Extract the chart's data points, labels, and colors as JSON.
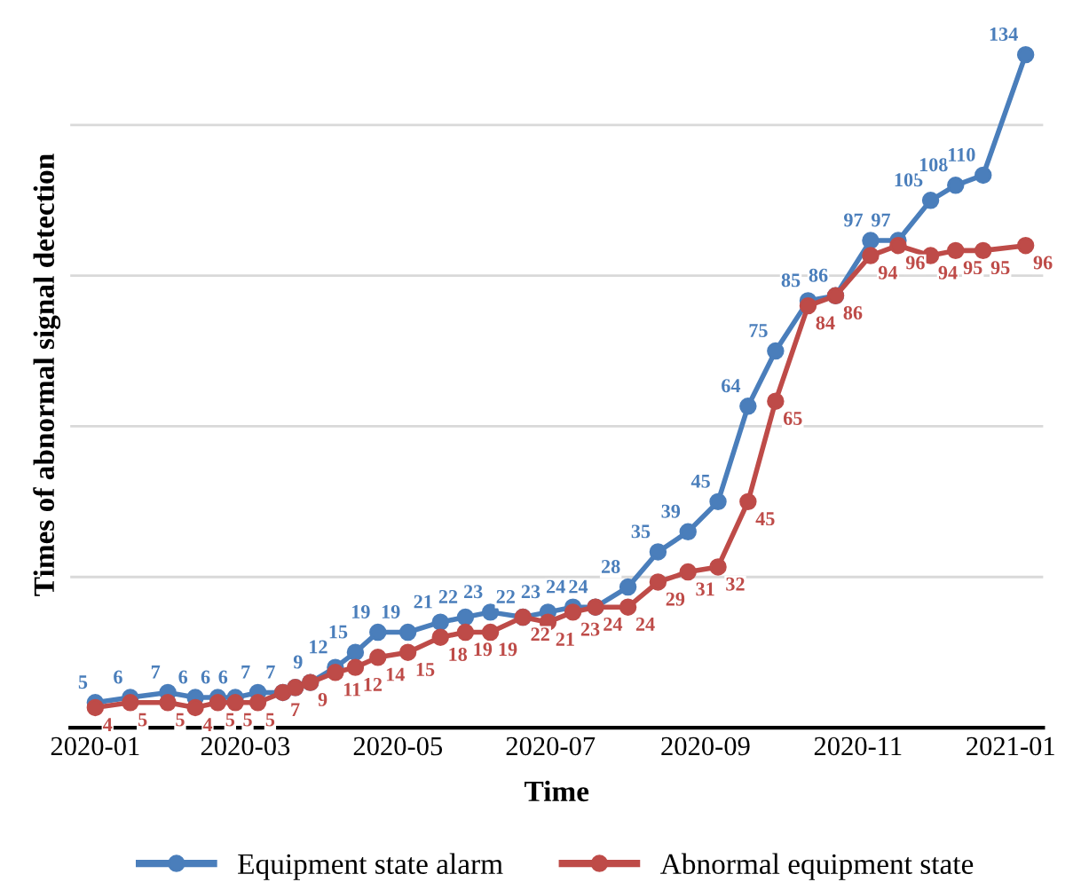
{
  "chart_data": {
    "type": "line",
    "xlabel": "Time",
    "ylabel": "Times of abnormal signal detection",
    "x": [
      "2020-01-01",
      "2020-01-15",
      "2020-01-30",
      "2020-02-10",
      "2020-02-19",
      "2020-02-26",
      "2020-03-06",
      "2020-03-16",
      "2020-03-21",
      "2020-03-27",
      "2020-04-06",
      "2020-04-14",
      "2020-04-23",
      "2020-05-05",
      "2020-05-18",
      "2020-05-28",
      "2020-06-07",
      "2020-06-20",
      "2020-06-30",
      "2020-07-10",
      "2020-07-19",
      "2020-08-01",
      "2020-08-13",
      "2020-08-25",
      "2020-09-06",
      "2020-09-18",
      "2020-09-29",
      "2020-10-12",
      "2020-10-23",
      "2020-11-06",
      "2020-11-17",
      "2020-11-30",
      "2020-12-10",
      "2020-12-21",
      "2021-01-07"
    ],
    "series": [
      {
        "name": "Equipment state alarm",
        "color": "#4a7ebb",
        "values": [
          5,
          6,
          7,
          6,
          6,
          6,
          7,
          7,
          8,
          9,
          12,
          15,
          19,
          19,
          21,
          22,
          23,
          22,
          23,
          24,
          24,
          28,
          35,
          39,
          45,
          64,
          75,
          85,
          86,
          97,
          97,
          105,
          108,
          110,
          134
        ],
        "value_labels": [
          "5",
          "6",
          "7",
          "6",
          "6",
          "6",
          "7",
          "7",
          null,
          "9",
          "12",
          "15",
          "19",
          "19",
          "21",
          "22",
          "23",
          "22",
          "23",
          "24",
          "24",
          "28",
          "35",
          "39",
          "45",
          "64",
          "75",
          "85",
          "86",
          "97",
          "97",
          "105",
          "108",
          "110",
          "134"
        ]
      },
      {
        "name": "Abnormal equipment state",
        "color": "#be4b48",
        "values": [
          4,
          5,
          5,
          4,
          5,
          5,
          5,
          7,
          8,
          9,
          11,
          12,
          14,
          15,
          18,
          19,
          19,
          22,
          21,
          23,
          24,
          24,
          29,
          31,
          32,
          45,
          65,
          84,
          86,
          94,
          96,
          94,
          95,
          95,
          96
        ],
        "value_labels": [
          "4",
          "5",
          "5",
          "4",
          "5",
          "5",
          "5",
          "7",
          null,
          "9",
          "11",
          "12",
          "14",
          "15",
          "18",
          "19",
          "19",
          "22",
          "21",
          "23",
          "24",
          "24",
          "29",
          "31",
          "32",
          "45",
          "65",
          "84",
          "86",
          "94",
          "96",
          "94",
          "95",
          "95",
          "96"
        ]
      }
    ],
    "xlim": [
      "2019-12-22",
      "2021-01-14"
    ],
    "xticks": [
      {
        "value": "2020-01-01",
        "label": "2020-01"
      },
      {
        "value": "2020-03-01",
        "label": "2020-03"
      },
      {
        "value": "2020-05-01",
        "label": "2020-05"
      },
      {
        "value": "2020-07-01",
        "label": "2020-07"
      },
      {
        "value": "2020-09-01",
        "label": "2020-09"
      },
      {
        "value": "2020-11-01",
        "label": "2020-11"
      },
      {
        "value": "2021-01-01",
        "label": "2021-01"
      }
    ],
    "yticks": [
      {
        "value": 0,
        "label": null
      },
      {
        "value": 30,
        "label": null
      },
      {
        "value": 60,
        "label": null
      },
      {
        "value": 90,
        "label": null
      },
      {
        "value": 120,
        "label": null
      }
    ],
    "tick_labels": "x",
    "grid": "y",
    "legend": "bottom",
    "marker": "circle",
    "line_style": "solid"
  }
}
